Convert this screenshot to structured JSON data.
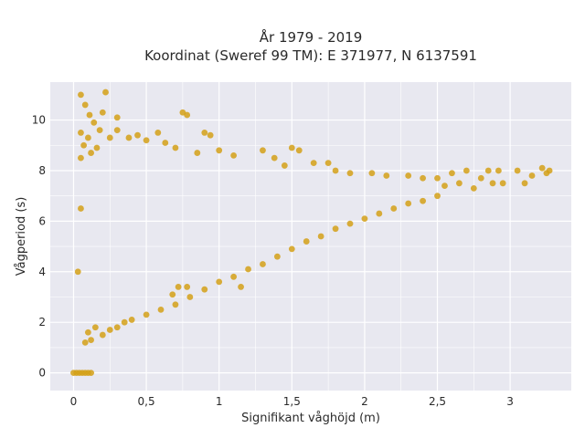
{
  "chart_data": {
    "type": "scatter",
    "title_line1": "År 1979 - 2019",
    "title_line2": "Koordinat (Sweref 99 TM): E 371977, N 6137591",
    "xlabel": "Signifikant våghöjd (m)",
    "ylabel": "Vågperiod (s)",
    "xlim": [
      -0.16,
      3.42
    ],
    "ylim": [
      -0.7,
      11.5
    ],
    "x_ticks": [
      0,
      0.5,
      1,
      1.5,
      2,
      2.5,
      3
    ],
    "x_tick_labels": [
      "0",
      "0,5",
      "1",
      "1,5",
      "2",
      "2,5",
      "3"
    ],
    "y_ticks": [
      0,
      2,
      4,
      6,
      8,
      10
    ],
    "y_tick_labels": [
      "0",
      "2",
      "4",
      "6",
      "8",
      "10"
    ],
    "grid": true,
    "colors": {
      "marker": "#d4a017",
      "plot_background": "#e8e8f0",
      "grid": "#ffffff"
    },
    "series": [
      {
        "points": [
          [
            0.05,
            11.0
          ],
          [
            0.22,
            11.1
          ],
          [
            0.08,
            10.6
          ],
          [
            0.11,
            10.2
          ],
          [
            0.14,
            9.9
          ],
          [
            0.2,
            10.3
          ],
          [
            0.3,
            10.1
          ],
          [
            0.05,
            9.5
          ],
          [
            0.1,
            9.3
          ],
          [
            0.18,
            9.6
          ],
          [
            0.25,
            9.3
          ],
          [
            0.3,
            9.6
          ],
          [
            0.38,
            9.3
          ],
          [
            0.44,
            9.4
          ],
          [
            0.5,
            9.2
          ],
          [
            0.58,
            9.5
          ],
          [
            0.63,
            9.1
          ],
          [
            0.75,
            10.3
          ],
          [
            0.78,
            10.2
          ],
          [
            0.9,
            9.5
          ],
          [
            0.94,
            9.4
          ],
          [
            0.7,
            8.9
          ],
          [
            0.85,
            8.7
          ],
          [
            1.0,
            8.8
          ],
          [
            1.1,
            8.6
          ],
          [
            1.3,
            8.8
          ],
          [
            1.38,
            8.5
          ],
          [
            1.5,
            8.9
          ],
          [
            1.55,
            8.8
          ],
          [
            1.45,
            8.2
          ],
          [
            1.65,
            8.3
          ],
          [
            1.75,
            8.3
          ],
          [
            1.8,
            8.0
          ],
          [
            1.9,
            7.9
          ],
          [
            2.05,
            7.9
          ],
          [
            2.15,
            7.8
          ],
          [
            2.3,
            7.8
          ],
          [
            2.4,
            7.7
          ],
          [
            2.5,
            7.7
          ],
          [
            2.6,
            7.9
          ],
          [
            2.7,
            8.0
          ],
          [
            2.8,
            7.7
          ],
          [
            2.85,
            8.0
          ],
          [
            2.92,
            8.0
          ],
          [
            2.95,
            7.5
          ],
          [
            3.05,
            8.0
          ],
          [
            3.1,
            7.5
          ],
          [
            3.15,
            7.8
          ],
          [
            3.22,
            8.1
          ],
          [
            3.25,
            7.9
          ],
          [
            3.27,
            8.0
          ],
          [
            2.65,
            7.5
          ],
          [
            2.55,
            7.4
          ],
          [
            2.88,
            7.5
          ],
          [
            2.75,
            7.3
          ],
          [
            0.0,
            0.0
          ],
          [
            0.02,
            0.0
          ],
          [
            0.04,
            0.0
          ],
          [
            0.06,
            0.0
          ],
          [
            0.08,
            0.0
          ],
          [
            0.1,
            0.0
          ],
          [
            0.12,
            0.0
          ],
          [
            0.08,
            1.2
          ],
          [
            0.1,
            1.6
          ],
          [
            0.12,
            1.3
          ],
          [
            0.15,
            1.8
          ],
          [
            0.2,
            1.5
          ],
          [
            0.25,
            1.7
          ],
          [
            0.3,
            1.8
          ],
          [
            0.35,
            2.0
          ],
          [
            0.4,
            2.1
          ],
          [
            0.5,
            2.3
          ],
          [
            0.6,
            2.5
          ],
          [
            0.7,
            2.7
          ],
          [
            0.8,
            3.0
          ],
          [
            0.9,
            3.3
          ],
          [
            1.0,
            3.6
          ],
          [
            1.1,
            3.8
          ],
          [
            1.2,
            4.1
          ],
          [
            1.3,
            4.3
          ],
          [
            1.4,
            4.6
          ],
          [
            1.5,
            4.9
          ],
          [
            1.6,
            5.2
          ],
          [
            1.7,
            5.4
          ],
          [
            1.8,
            5.7
          ],
          [
            1.9,
            5.9
          ],
          [
            2.0,
            6.1
          ],
          [
            2.1,
            6.3
          ],
          [
            2.2,
            6.5
          ],
          [
            2.3,
            6.7
          ],
          [
            2.4,
            6.8
          ],
          [
            2.5,
            7.0
          ],
          [
            0.68,
            3.1
          ],
          [
            0.72,
            3.4
          ],
          [
            0.78,
            3.4
          ],
          [
            1.15,
            3.4
          ],
          [
            0.05,
            8.5
          ],
          [
            0.07,
            9.0
          ],
          [
            0.12,
            8.7
          ],
          [
            0.16,
            8.9
          ],
          [
            0.05,
            6.5
          ],
          [
            0.03,
            4.0
          ]
        ]
      }
    ]
  }
}
